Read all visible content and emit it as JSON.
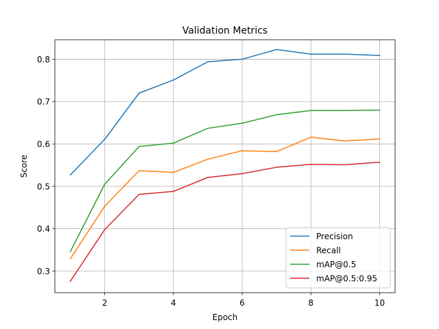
{
  "chart_data": {
    "type": "line",
    "title": "Validation Metrics",
    "xlabel": "Epoch",
    "ylabel": "Score",
    "xlim": [
      0.55,
      10.45
    ],
    "ylim": [
      0.249,
      0.846
    ],
    "xticks": [
      2,
      4,
      6,
      8,
      10
    ],
    "yticks": [
      0.3,
      0.4,
      0.5,
      0.6,
      0.7,
      0.8
    ],
    "xtick_labels": [
      "2",
      "4",
      "6",
      "8",
      "10"
    ],
    "ytick_labels": [
      "0.3",
      "0.4",
      "0.5",
      "0.6",
      "0.7",
      "0.8"
    ],
    "grid": true,
    "legend_position": "lower-right",
    "x": [
      1,
      2,
      3,
      4,
      5,
      6,
      7,
      8,
      9,
      10
    ],
    "series": [
      {
        "name": "Precision",
        "color": "#1f77b4",
        "values": [
          0.527,
          0.611,
          0.72,
          0.751,
          0.794,
          0.8,
          0.823,
          0.812,
          0.812,
          0.809
        ]
      },
      {
        "name": "Recall",
        "color": "#ff7f0e",
        "values": [
          0.329,
          0.453,
          0.537,
          0.533,
          0.564,
          0.584,
          0.582,
          0.616,
          0.607,
          0.612
        ]
      },
      {
        "name": "mAP@0.5",
        "color": "#2ca02c",
        "values": [
          0.346,
          0.505,
          0.594,
          0.602,
          0.637,
          0.649,
          0.669,
          0.679,
          0.679,
          0.68
        ]
      },
      {
        "name": "mAP@0.5:0.95",
        "color": "#d62728",
        "values": [
          0.276,
          0.398,
          0.481,
          0.488,
          0.521,
          0.53,
          0.545,
          0.552,
          0.551,
          0.557
        ]
      }
    ]
  }
}
